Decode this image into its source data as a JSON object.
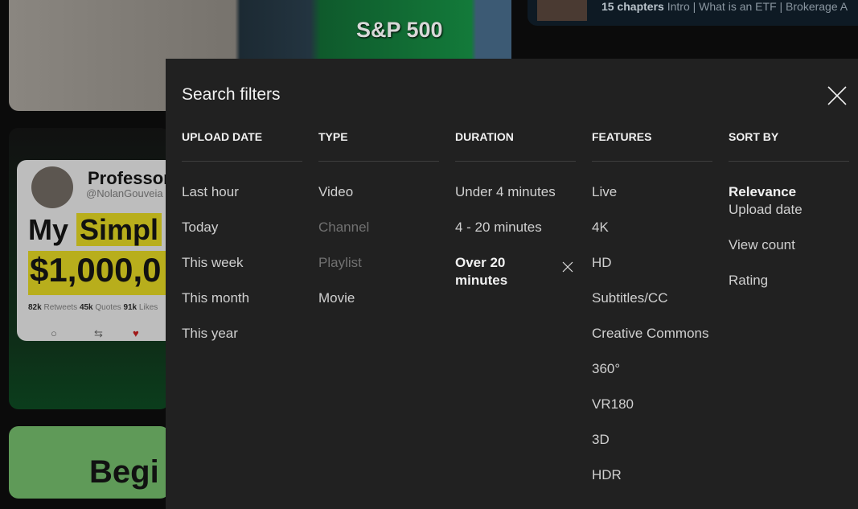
{
  "background": {
    "thumb1_text": "S&P 500",
    "chapters": {
      "count_label": "15 chapters",
      "text": "Intro | What is an ETF | Brokerage A"
    },
    "tweet": {
      "name": "Professor",
      "handle": "@NolanGouveia",
      "line1_a": "My",
      "line1_b": "Simpl",
      "line2": "$1,000,0",
      "retweets_n": "82k",
      "retweets": "Retweets",
      "quotes_n": "45k",
      "quotes": "Quotes",
      "likes_n": "91k",
      "likes": "Likes"
    },
    "thumb3_text": "Begi"
  },
  "dialog": {
    "title": "Search filters",
    "columns": [
      {
        "header": "UPLOAD DATE",
        "items": [
          {
            "label": "Last hour"
          },
          {
            "label": "Today"
          },
          {
            "label": "This week"
          },
          {
            "label": "This month"
          },
          {
            "label": "This year"
          }
        ]
      },
      {
        "header": "TYPE",
        "items": [
          {
            "label": "Video"
          },
          {
            "label": "Channel",
            "disabled": true
          },
          {
            "label": "Playlist",
            "disabled": true
          },
          {
            "label": "Movie"
          }
        ]
      },
      {
        "header": "DURATION",
        "items": [
          {
            "label": "Under 4 minutes"
          },
          {
            "label": "4 - 20 minutes"
          },
          {
            "label": "Over 20 minutes",
            "selected": true
          }
        ]
      },
      {
        "header": "FEATURES",
        "items": [
          {
            "label": "Live"
          },
          {
            "label": "4K"
          },
          {
            "label": "HD"
          },
          {
            "label": "Subtitles/CC"
          },
          {
            "label": "Creative Commons"
          },
          {
            "label": "360°"
          },
          {
            "label": "VR180"
          },
          {
            "label": "3D"
          },
          {
            "label": "HDR"
          }
        ]
      },
      {
        "header": "SORT BY",
        "items": [
          {
            "label": "Relevance",
            "selected": true
          },
          {
            "label": "Upload date"
          },
          {
            "label": "View count"
          },
          {
            "label": "Rating"
          }
        ]
      }
    ]
  }
}
